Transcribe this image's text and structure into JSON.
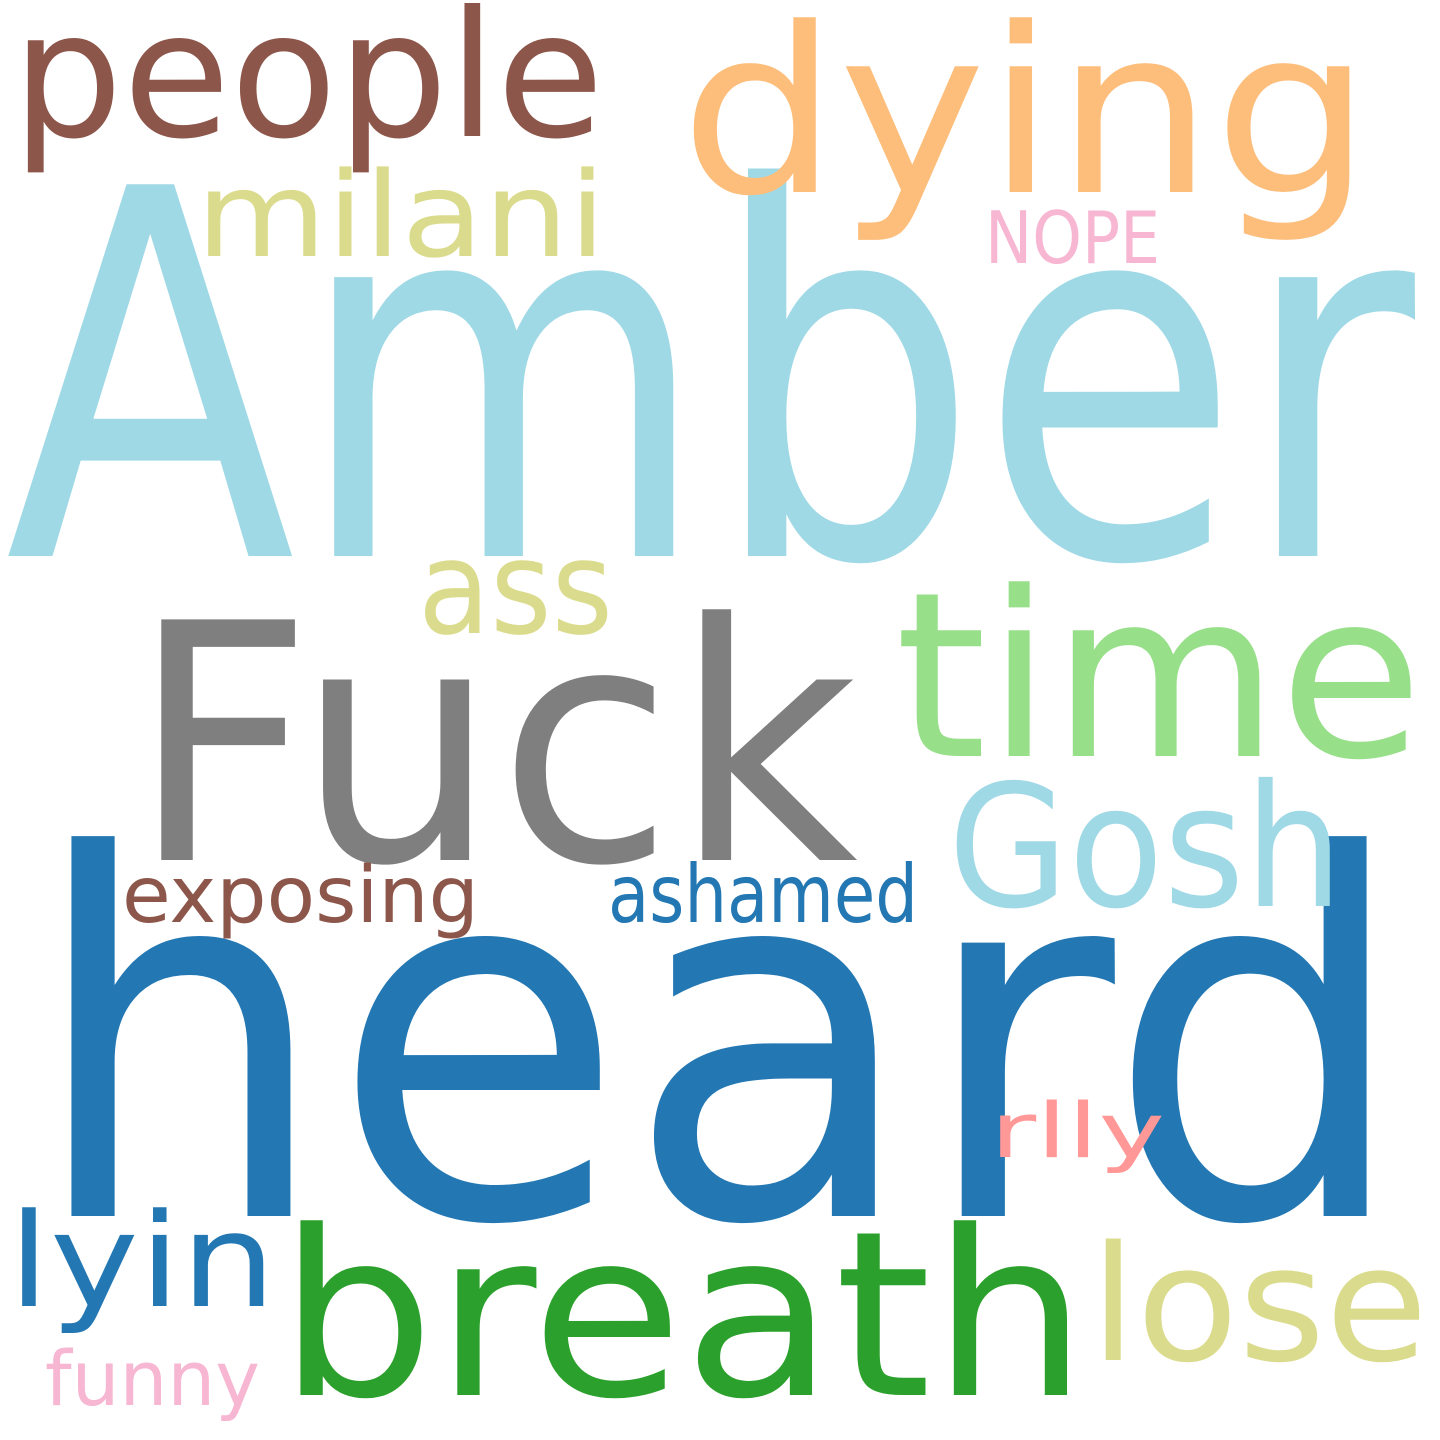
{
  "words": [
    {
      "id": "amber",
      "text": "Amber",
      "color": "#9fd9e6"
    },
    {
      "id": "heard",
      "text": "heard",
      "color": "#2377b3"
    },
    {
      "id": "fuck",
      "text": "Fuck",
      "color": "#7f7f7f"
    },
    {
      "id": "dying",
      "text": "dying",
      "color": "#fdbe7c"
    },
    {
      "id": "people",
      "text": "people",
      "color": "#8d564b"
    },
    {
      "id": "time",
      "text": "time",
      "color": "#98df8a"
    },
    {
      "id": "breath",
      "text": "breath",
      "color": "#2ca02c"
    },
    {
      "id": "gosh",
      "text": "Gosh",
      "color": "#9fd9e6"
    },
    {
      "id": "milani",
      "text": "milani",
      "color": "#dbdb8d"
    },
    {
      "id": "lose",
      "text": "lose",
      "color": "#dbdb8d"
    },
    {
      "id": "lyin",
      "text": "lyin",
      "color": "#2377b3"
    },
    {
      "id": "ass",
      "text": "ass",
      "color": "#dbdb8d"
    },
    {
      "id": "exposing",
      "text": "exposing",
      "color": "#8d564b"
    },
    {
      "id": "ashamed",
      "text": "ashamed",
      "color": "#2377b3"
    },
    {
      "id": "nope",
      "text": "NOPE",
      "color": "#f7b6d2"
    },
    {
      "id": "rlly",
      "text": "rlly",
      "color": "#ff9896"
    },
    {
      "id": "funny",
      "text": "funny",
      "color": "#f7b6d2"
    }
  ]
}
